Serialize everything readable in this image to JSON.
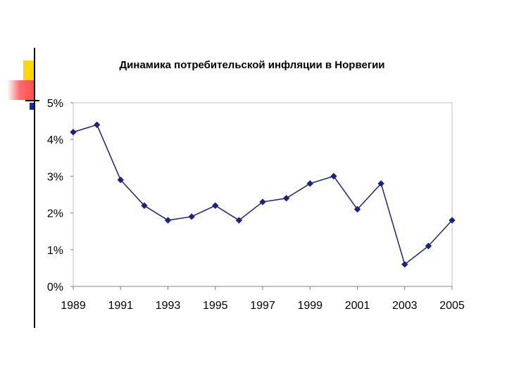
{
  "chart_data": {
    "type": "line",
    "title": "Динамика потребительской инфляции в Норвегии",
    "xlabel": "",
    "ylabel": "",
    "x": [
      1989,
      1990,
      1991,
      1992,
      1993,
      1994,
      1995,
      1996,
      1997,
      1998,
      1999,
      2000,
      2001,
      2002,
      2003,
      2004,
      2005
    ],
    "values": [
      4.2,
      4.4,
      2.9,
      2.2,
      1.8,
      1.9,
      2.2,
      1.8,
      2.3,
      2.4,
      2.8,
      3.0,
      2.1,
      2.8,
      0.6,
      1.1,
      1.8
    ],
    "x_tick_labels": [
      "1989",
      "1991",
      "1993",
      "1995",
      "1997",
      "1999",
      "2001",
      "2003",
      "2005"
    ],
    "y_tick_labels": [
      "5%",
      "4%",
      "3%",
      "2%",
      "1%",
      "0%"
    ],
    "ylim": [
      0,
      5
    ],
    "xlim": [
      1989,
      2005
    ],
    "grid": false,
    "legend": "none",
    "colors": {
      "series": "#1a237e",
      "plot_border": "#c0c0c0",
      "axis": "#808080"
    }
  },
  "decoration": {
    "accent_yellow": "#ffd700",
    "accent_red": "#ff4c4c",
    "accent_blue": "#1a2a9c",
    "side_line": "#000000"
  }
}
